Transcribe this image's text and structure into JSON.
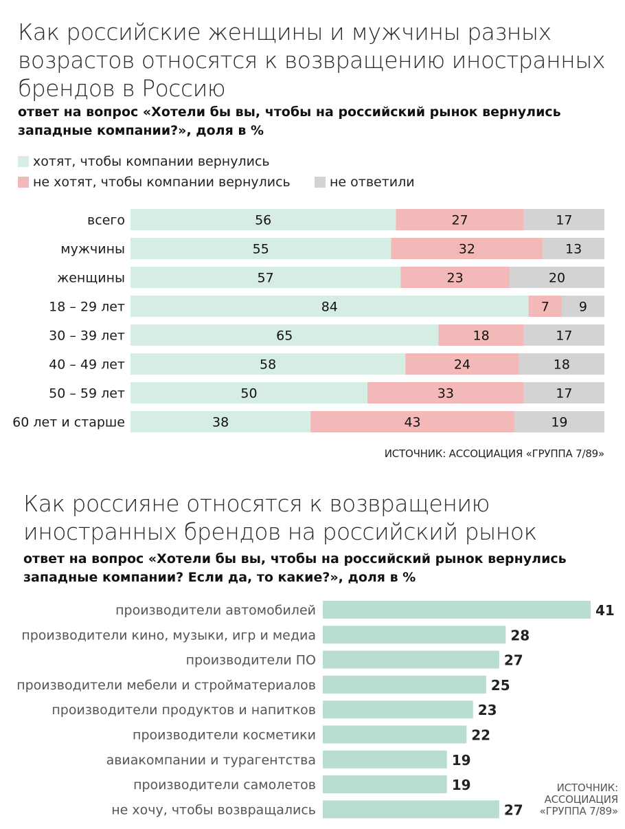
{
  "chart_data": [
    {
      "type": "bar",
      "stacked": true,
      "orientation": "horizontal",
      "title": "Как российские женщины и мужчины разных возрастов относятся к возвращению иностранных брендов в Россию",
      "subtitle": "ответ на вопрос «Хотели бы вы, чтобы на российский рынок вернулись западные компании?», доля в %",
      "categories": [
        "всего",
        "мужчины",
        "женщины",
        "18 – 29 лет",
        "30 – 39 лет",
        "40 – 49 лет",
        "50 – 59 лет",
        "60 лет и старше"
      ],
      "series": [
        {
          "name": "хотят, чтобы компании вернулись",
          "color": "#d6ede4",
          "values": [
            56,
            55,
            57,
            84,
            65,
            58,
            50,
            38
          ]
        },
        {
          "name": "не хотят, чтобы компании вернулись",
          "color": "#f3b9b8",
          "values": [
            27,
            32,
            23,
            7,
            18,
            24,
            33,
            43
          ]
        },
        {
          "name": "не ответили",
          "color": "#d3d3d3",
          "values": [
            17,
            13,
            20,
            9,
            17,
            18,
            17,
            19
          ]
        }
      ],
      "legend_position": "top-left",
      "grid": false,
      "source": "ИСТОЧНИК: АССОЦИАЦИЯ «ГРУППА 7/89»"
    },
    {
      "type": "bar",
      "orientation": "horizontal",
      "title": "Как россияне относятся к возвращению иностранных брендов на российский рынок",
      "subtitle": "ответ на вопрос «Хотели бы вы, чтобы на российский рынок вернулись западные компании? Если да, то какие?», доля в %",
      "categories": [
        "производители автомобилей",
        "производители кино, музыки, игр и медиа",
        "производители ПО",
        "производители мебели и стройматериалов",
        "производители продуктов и напитков",
        "производители косметики",
        "авиакомпании и турагентства",
        "производители самолетов",
        "не хочу, чтобы возвращались"
      ],
      "values": [
        41,
        28,
        27,
        25,
        23,
        22,
        19,
        19,
        27
      ],
      "color": "#b9ddd2",
      "grid": false,
      "source": "ИСТОЧНИК: АССОЦИАЦИЯ «ГРУППА 7/89»"
    }
  ]
}
